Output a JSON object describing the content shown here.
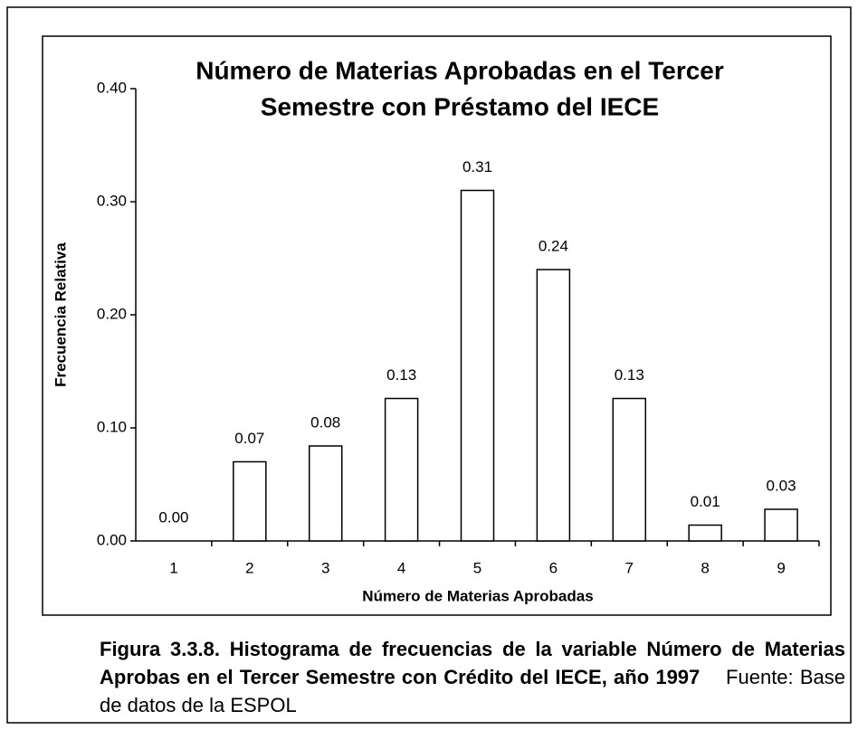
{
  "chart_data": {
    "type": "bar",
    "title": [
      "Número de Materias Aprobadas en el Tercer",
      "Semestre con Préstamo del IECE"
    ],
    "x_label": "Número de Materias Aprobadas",
    "y_label": "Frecuencia Relativa",
    "categories": [
      "1",
      "2",
      "3",
      "4",
      "5",
      "6",
      "7",
      "8",
      "9"
    ],
    "values": [
      0,
      0.07,
      0.084,
      0.126,
      0.31,
      0.24,
      0.126,
      0.014,
      0.028
    ],
    "value_labels": [
      "0.00",
      "0.07",
      "0.08",
      "0.13",
      "0.31",
      "0.24",
      "0.13",
      "0.01",
      "0.03"
    ],
    "color": "#ffffff",
    "ylim": [
      0,
      0.4
    ],
    "yticks": [
      {
        "value": 0,
        "label": "0.00"
      },
      {
        "value": 0.1,
        "label": "0.10"
      },
      {
        "value": 0.2,
        "label": "0.20"
      },
      {
        "value": 0.3,
        "label": "0.30"
      },
      {
        "value": 0.4,
        "label": "0.40"
      }
    ],
    "grid": false
  },
  "caption": {
    "bold": "Figura 3.3.8. Histograma de frecuencias de la variable Número de Materias Aprobas en el Tercer Semestre con Crédito del IECE, año 1997",
    "source": "Fuente: Base de datos de la ESPOL"
  }
}
